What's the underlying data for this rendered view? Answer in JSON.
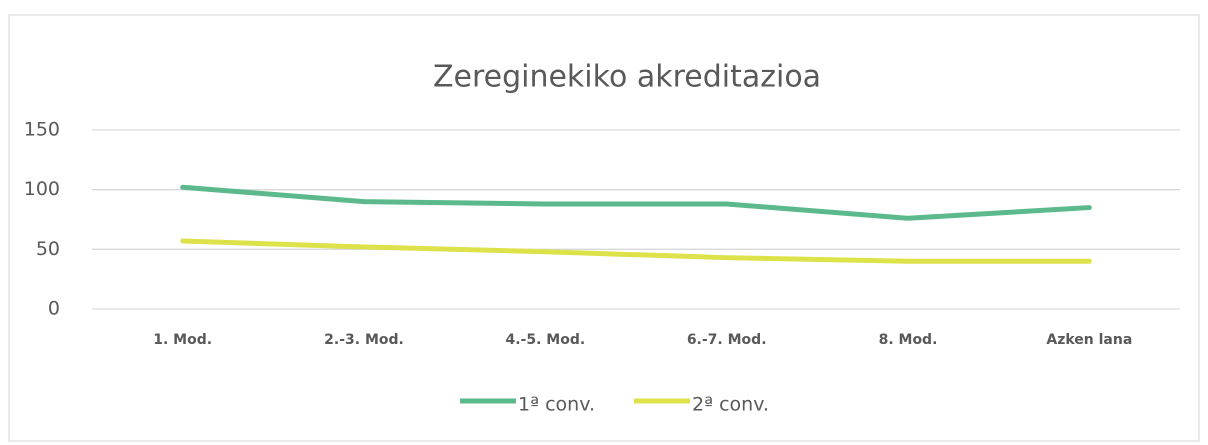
{
  "chart_data": {
    "type": "line",
    "title": "Zereginekiko akreditazioa",
    "categories": [
      "1. Mod.",
      "2.-3. Mod.",
      "4.-5. Mod.",
      "6.-7. Mod.",
      "8. Mod.",
      "Azken lana"
    ],
    "series": [
      {
        "name": "1ª conv.",
        "color": "#5bb98b",
        "values": [
          102,
          90,
          88,
          88,
          76,
          85
        ]
      },
      {
        "name": "2ª conv.",
        "color": "#dde24a",
        "values": [
          57,
          52,
          48,
          43,
          40,
          40
        ]
      }
    ],
    "ylim": [
      0,
      150
    ],
    "yticks": [
      0,
      50,
      100,
      150
    ],
    "grid": true,
    "legend": "bottom"
  }
}
